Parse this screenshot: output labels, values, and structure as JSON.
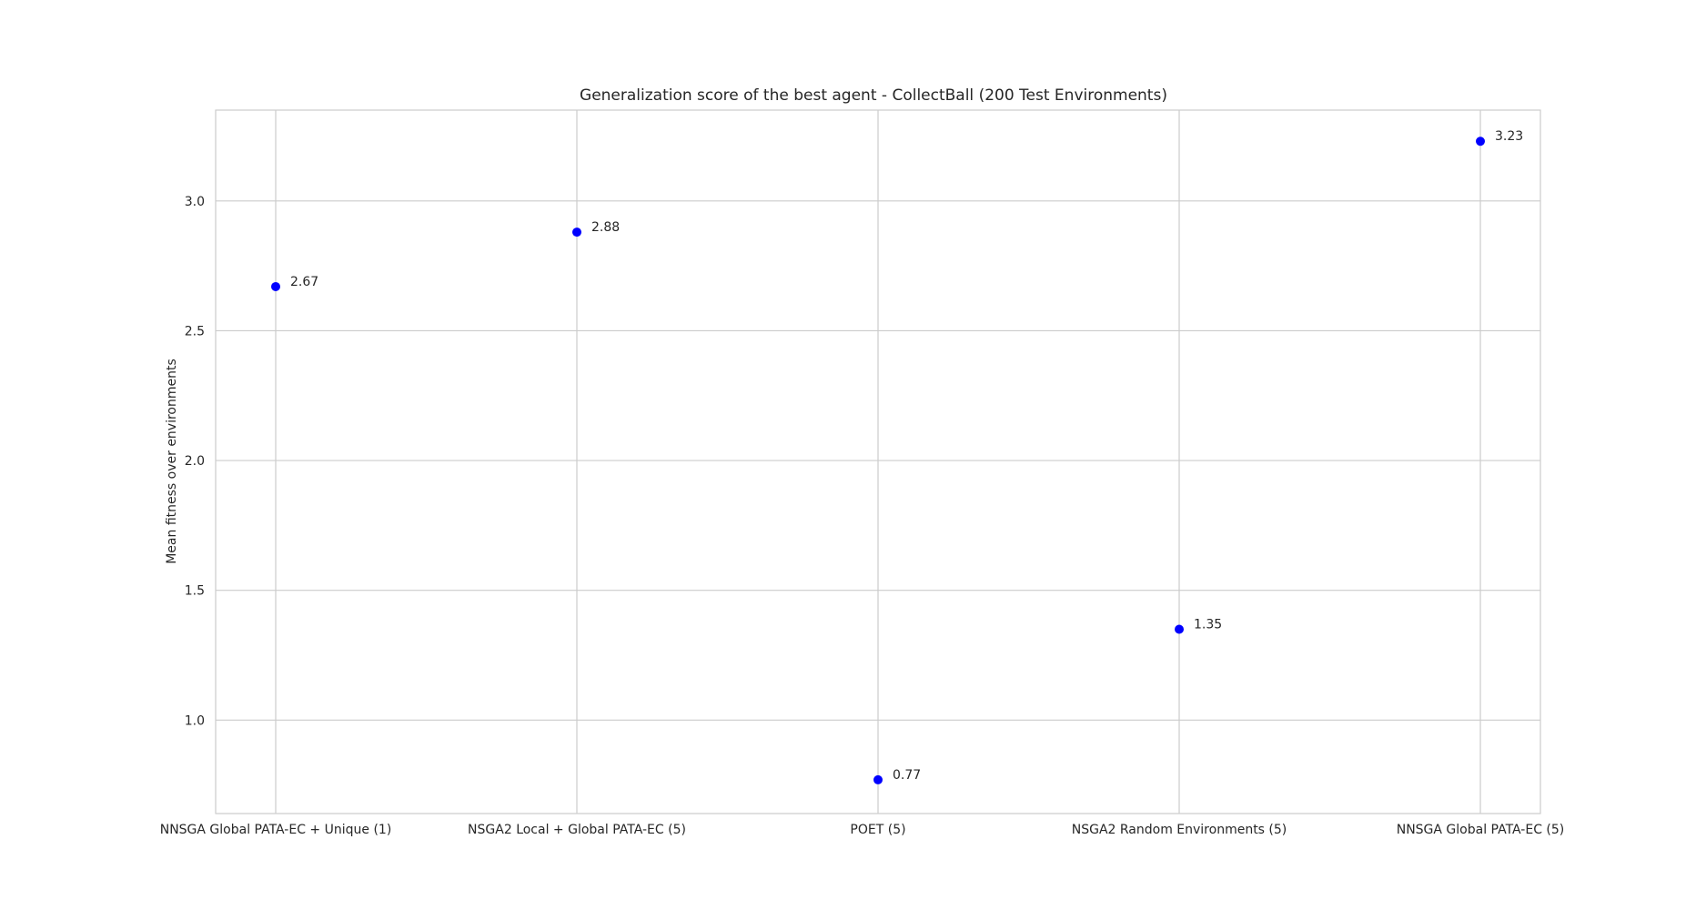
{
  "chart_data": {
    "type": "scatter",
    "title": "Generalization score of the best agent - CollectBall (200 Test Environments)",
    "xlabel": "",
    "ylabel": "Mean fitness over environments",
    "categories": [
      "NNSGA Global PATA-EC + Unique (1)",
      "NSGA2 Local + Global PATA-EC (5)",
      "POET (5)",
      "NSGA2 Random Environments (5)",
      "NNSGA Global PATA-EC (5)"
    ],
    "values": [
      2.67,
      2.88,
      0.77,
      1.35,
      3.23
    ],
    "data_labels": [
      "2.67",
      "2.88",
      "0.77",
      "1.35",
      "3.23"
    ],
    "yticks": [
      1.0,
      1.5,
      2.0,
      2.5,
      3.0
    ],
    "ytick_labels": [
      "1.0",
      "1.5",
      "2.0",
      "2.5",
      "3.0"
    ],
    "ylim": [
      0.64,
      3.35
    ],
    "grid": true,
    "legend": "none",
    "colors": {
      "marker": "#0000ff",
      "grid": "#cccccc",
      "text": "#262626"
    }
  }
}
